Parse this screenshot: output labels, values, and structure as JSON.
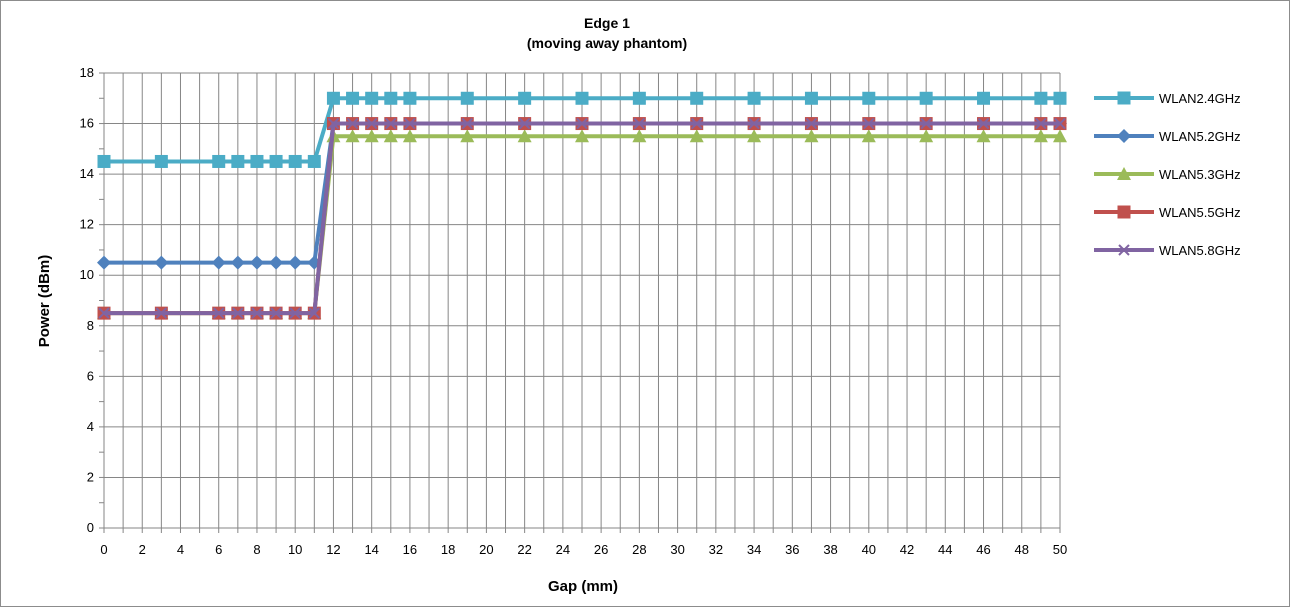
{
  "chart_data": {
    "type": "line",
    "title": "Edge 1",
    "subtitle": "(moving away phantom)",
    "xlabel": "Gap (mm)",
    "ylabel": "Power (dBm)",
    "xlim": [
      0,
      50
    ],
    "ylim": [
      0,
      18
    ],
    "x_ticks": [
      "0",
      "2",
      "4",
      "6",
      "8",
      "10",
      "12",
      "14",
      "16",
      "18",
      "20",
      "22",
      "24",
      "26",
      "28",
      "30",
      "32",
      "34",
      "36",
      "38",
      "40",
      "42",
      "44",
      "46",
      "48",
      "50"
    ],
    "y_ticks": [
      "0",
      "2",
      "4",
      "6",
      "8",
      "10",
      "12",
      "14",
      "16",
      "18"
    ],
    "grid": true,
    "legend_position": "right",
    "x": [
      0,
      3,
      6,
      7,
      8,
      9,
      10,
      11,
      12,
      13,
      14,
      15,
      16,
      19,
      22,
      25,
      28,
      31,
      34,
      37,
      40,
      43,
      46,
      49,
      50
    ],
    "series": [
      {
        "name": "WLAN2.4GHz",
        "color": "#4bacc6",
        "marker": "square",
        "values": [
          14.5,
          14.5,
          14.5,
          14.5,
          14.5,
          14.5,
          14.5,
          14.5,
          17,
          17,
          17,
          17,
          17,
          17,
          17,
          17,
          17,
          17,
          17,
          17,
          17,
          17,
          17,
          17,
          17
        ]
      },
      {
        "name": "WLAN5.2GHz",
        "color": "#4f81bd",
        "marker": "diamond",
        "values": [
          10.5,
          10.5,
          10.5,
          10.5,
          10.5,
          10.5,
          10.5,
          10.5,
          16,
          16,
          16,
          16,
          16,
          16,
          16,
          16,
          16,
          16,
          16,
          16,
          16,
          16,
          16,
          16,
          16
        ]
      },
      {
        "name": "WLAN5.3GHz",
        "color": "#9bbb59",
        "marker": "triangle",
        "values": [
          8.5,
          8.5,
          8.5,
          8.5,
          8.5,
          8.5,
          8.5,
          8.5,
          15.5,
          15.5,
          15.5,
          15.5,
          15.5,
          15.5,
          15.5,
          15.5,
          15.5,
          15.5,
          15.5,
          15.5,
          15.5,
          15.5,
          15.5,
          15.5,
          15.5
        ]
      },
      {
        "name": "WLAN5.5GHz",
        "color": "#c0504d",
        "marker": "square",
        "values": [
          8.5,
          8.5,
          8.5,
          8.5,
          8.5,
          8.5,
          8.5,
          8.5,
          16,
          16,
          16,
          16,
          16,
          16,
          16,
          16,
          16,
          16,
          16,
          16,
          16,
          16,
          16,
          16,
          16
        ]
      },
      {
        "name": "WLAN5.8GHz",
        "color": "#8064a2",
        "marker": "x",
        "values": [
          8.5,
          8.5,
          8.5,
          8.5,
          8.5,
          8.5,
          8.5,
          8.5,
          16,
          16,
          16,
          16,
          16,
          16,
          16,
          16,
          16,
          16,
          16,
          16,
          16,
          16,
          16,
          16,
          16
        ]
      }
    ]
  }
}
